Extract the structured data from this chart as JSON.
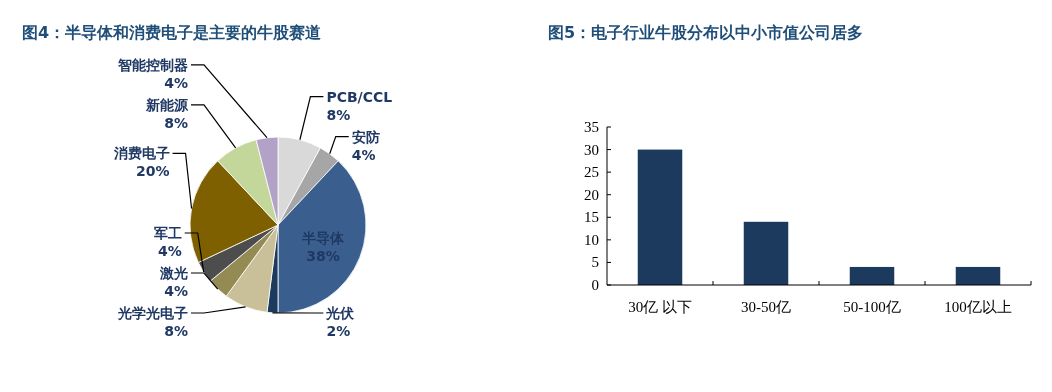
{
  "chart_data": [
    {
      "type": "pie",
      "title": "图4：半导体和消费电子是主要的牛股赛道",
      "categories": [
        "PCB/CCL",
        "安防",
        "半导体",
        "光伏",
        "光学光电子",
        "激光",
        "军工",
        "消费电子",
        "新能源",
        "智能控制器"
      ],
      "values": [
        8,
        4,
        38,
        2,
        8,
        4,
        4,
        20,
        8,
        4
      ],
      "colors": [
        "#d9d9d9",
        "#a6a6a6",
        "#3a5f8f",
        "#1b3a5e",
        "#c9c09a",
        "#948a54",
        "#4d4d4d",
        "#7f6000",
        "#c4d79b",
        "#b3a2c7"
      ],
      "value_labels": [
        "8%",
        "4%",
        "38%",
        "2%",
        "8%",
        "4%",
        "4%",
        "20%",
        "8%",
        "4%"
      ]
    },
    {
      "type": "bar",
      "title": "图5：电子行业牛股分布以中小市值公司居多",
      "categories": [
        "30亿 以下",
        "30-50亿",
        "50-100亿",
        "100亿以上"
      ],
      "values": [
        30,
        14,
        4,
        4
      ],
      "color": "#1b3a5e",
      "ylim": [
        0,
        35
      ],
      "yticks": [
        0,
        5,
        10,
        15,
        20,
        25,
        30,
        35
      ]
    }
  ]
}
